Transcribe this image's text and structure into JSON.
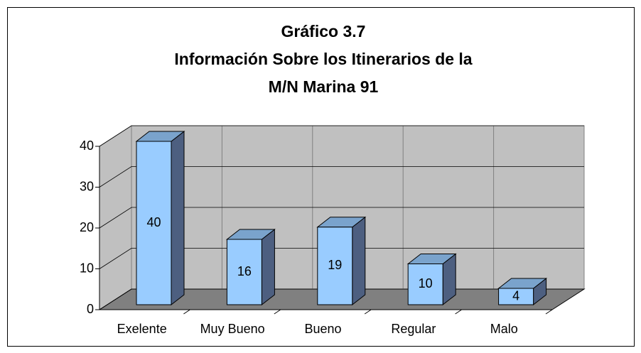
{
  "chart_data": {
    "type": "bar3d",
    "title": [
      "Gráfico 3.7",
      "Información Sobre los Itinerarios de la",
      "M/N Marina 91"
    ],
    "categories": [
      "Exelente",
      "Muy Bueno",
      "Bueno",
      "Regular",
      "Malo"
    ],
    "values": [
      40,
      16,
      19,
      10,
      4
    ],
    "color": "#99ccff",
    "ylim": [
      0,
      40
    ],
    "yticks": [
      0,
      10,
      20,
      30,
      40
    ],
    "grid": true
  }
}
